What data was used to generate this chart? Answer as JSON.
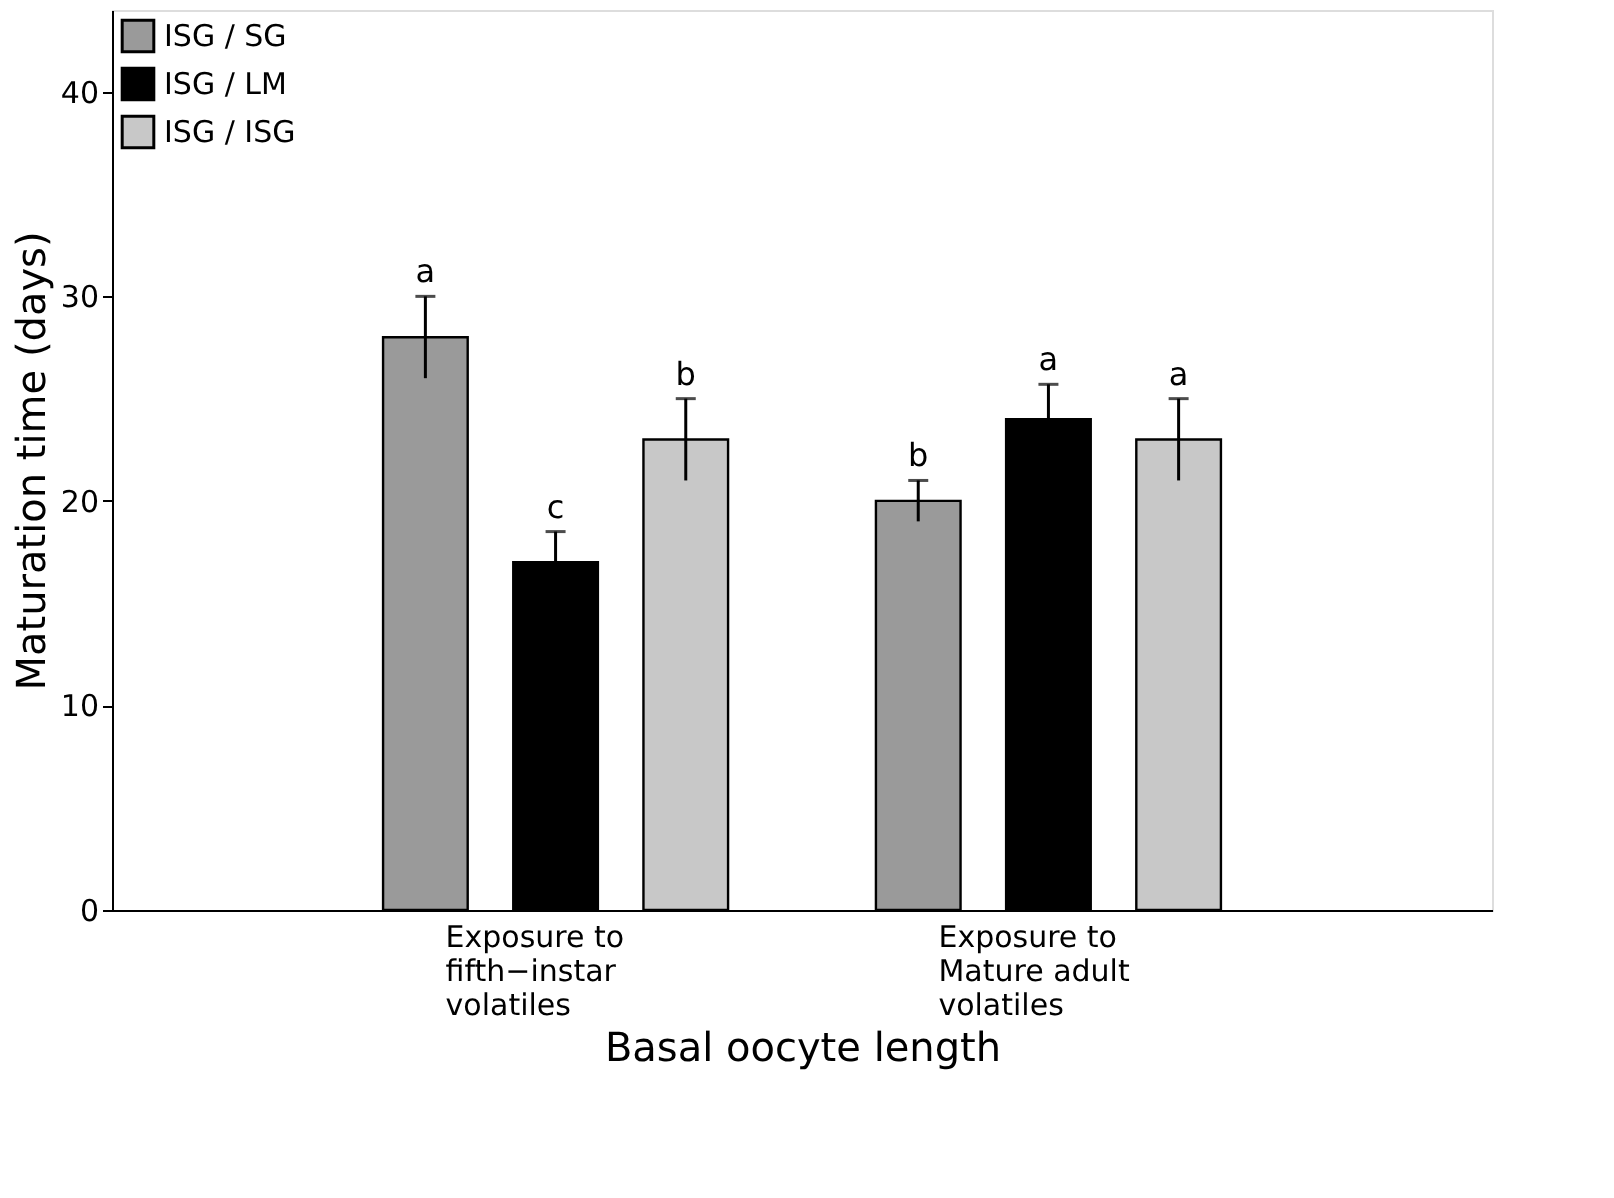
{
  "chart_data": {
    "type": "bar",
    "xlabel": "Basal oocyte length",
    "ylabel": "Maturation time (days)",
    "categories": [
      "Exposure to\nfifth−instar\nvolatiles",
      "Exposure to\nMature adult\nvolatiles"
    ],
    "series": [
      {
        "name": "ISG / SG",
        "color": "#9a9a9a",
        "values": [
          28,
          20
        ],
        "errors": [
          2,
          1
        ],
        "value_labels": [
          "a",
          "b"
        ]
      },
      {
        "name": "ISG / LM",
        "color": "#000000",
        "values": [
          17,
          24
        ],
        "errors": [
          1.5,
          1.7
        ],
        "value_labels": [
          "c",
          "a"
        ]
      },
      {
        "name": "ISG / ISG",
        "color": "#c8c8c8",
        "values": [
          23,
          23
        ],
        "errors": [
          2,
          2
        ],
        "value_labels": [
          "b",
          "a"
        ]
      }
    ],
    "ylim": [
      0,
      44
    ],
    "yticks": [
      0,
      10,
      20,
      30,
      40
    ],
    "legend": "top left",
    "grid": false
  }
}
